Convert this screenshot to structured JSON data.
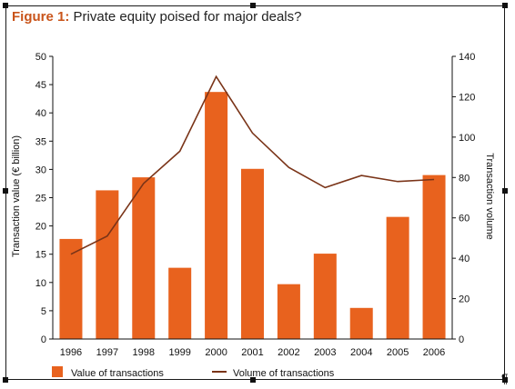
{
  "page": {
    "title_prefix": "Figure 1:",
    "title_text": "Private equity poised for major deals?"
  },
  "colors": {
    "title": "#c9541a",
    "bar": "#e8621e",
    "line": "#7a3418",
    "axis": "#111111"
  },
  "chart_data": {
    "type": "bar",
    "categories": [
      "1996",
      "1997",
      "1998",
      "1999",
      "2000",
      "2001",
      "2002",
      "2003",
      "2004",
      "2005",
      "2006"
    ],
    "series": [
      {
        "name": "Value of transactions",
        "type": "bar",
        "axis": "left",
        "values": [
          17.7,
          26.3,
          28.6,
          12.6,
          43.7,
          30.1,
          9.7,
          15.1,
          5.5,
          21.6,
          29.0
        ]
      },
      {
        "name": "Volume of transactions",
        "type": "line",
        "axis": "right",
        "values": [
          42,
          51,
          77,
          93,
          130,
          102,
          85,
          75,
          81,
          78,
          79
        ]
      }
    ],
    "ylabel": "Transaction value (€ billion)",
    "y2label": "Transaction  volume",
    "ylim": [
      0,
      50
    ],
    "y2lim": [
      0,
      140
    ],
    "yticks": [
      0,
      5,
      10,
      15,
      20,
      25,
      30,
      35,
      40,
      45,
      50
    ],
    "y2ticks": [
      0,
      20,
      40,
      60,
      80,
      100,
      120,
      140
    ],
    "grid": false,
    "legend_position": "bottom"
  }
}
